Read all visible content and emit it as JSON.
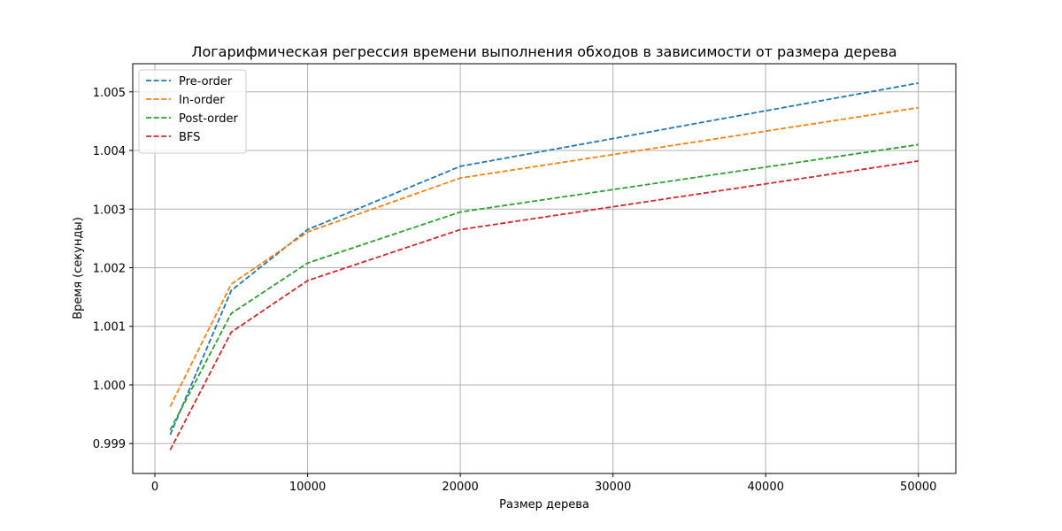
{
  "chart_data": {
    "type": "line",
    "title": "Логарифмическая регрессия времени выполнения обходов в зависимости от размера дерева",
    "xlabel": "Размер дерева",
    "ylabel": "Время (секунды)",
    "xlim": [
      -1450,
      52450
    ],
    "ylim": [
      0.99849,
      1.00548
    ],
    "xticks": [
      0,
      10000,
      20000,
      30000,
      40000,
      50000
    ],
    "xtick_labels": [
      "0",
      "10000",
      "20000",
      "30000",
      "40000",
      "50000"
    ],
    "yticks": [
      0.999,
      1.0,
      1.001,
      1.002,
      1.003,
      1.004,
      1.005
    ],
    "ytick_labels": [
      "0.999",
      "1.000",
      "1.001",
      "1.002",
      "1.003",
      "1.004",
      "1.005"
    ],
    "grid": true,
    "legend_position": "top-left",
    "line_style": "dashed",
    "x": [
      1000,
      5000,
      10000,
      20000,
      50000
    ],
    "series": [
      {
        "name": "Pre-order",
        "color": "#1f77b4",
        "values": [
          0.99915,
          1.00161,
          1.00265,
          1.00373,
          1.00515
        ]
      },
      {
        "name": "In-order",
        "color": "#ff7f0e",
        "values": [
          0.99963,
          1.00172,
          1.00261,
          1.00353,
          1.00473
        ]
      },
      {
        "name": "Post-order",
        "color": "#2ca02c",
        "values": [
          0.99923,
          1.00122,
          1.00208,
          1.00295,
          1.0041
        ]
      },
      {
        "name": "BFS",
        "color": "#d62728",
        "values": [
          0.99889,
          1.0009,
          1.00178,
          1.00265,
          1.00382
        ]
      }
    ]
  }
}
